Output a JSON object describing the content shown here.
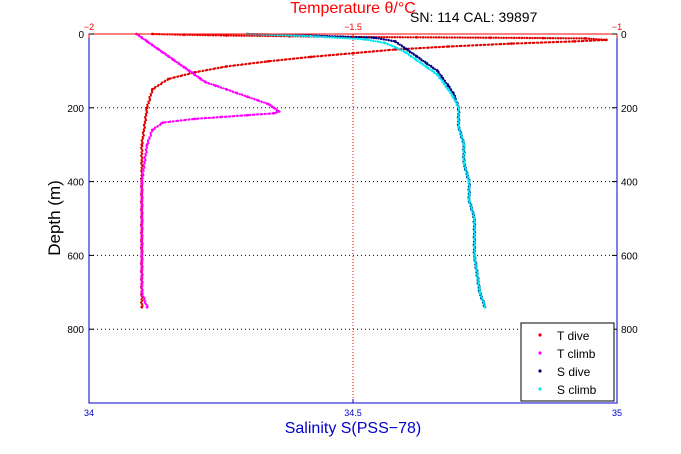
{
  "chart_data": {
    "type": "scatter",
    "title": "Temperature θ/°C",
    "annotation": "SN: 114  CAL: 39897",
    "xlabel_bottom": "Salinity S(PSS−78)",
    "xlabel_top": "Temperature θ/°C",
    "ylabel": "Depth (m)",
    "x_bottom_lim": [
      34,
      35
    ],
    "x_bottom_ticks": [
      "34",
      "34.5",
      "35"
    ],
    "x_top_lim": [
      -2,
      -1
    ],
    "x_top_ticks": [
      "−2",
      "−1.5",
      "−1"
    ],
    "ylim": [
      1000,
      0
    ],
    "y_ticks": [
      "0",
      "200",
      "400",
      "600",
      "800"
    ],
    "y_tick_values": [
      0,
      200,
      400,
      600,
      800
    ],
    "grid": "dotted",
    "legend_position": "bottom-right",
    "colors": {
      "axes_bottom": "#0000cc",
      "axes_top": "#ff0000",
      "t_dive": "#e00000",
      "t_climb": "#ff00ff",
      "s_dive": "#000080",
      "s_climb": "#00e5ee",
      "grid": "#000000"
    },
    "series": [
      {
        "name": "T dive",
        "axis": "top",
        "color": "#e00000",
        "x": [
          -1.88,
          -1.82,
          -1.74,
          -1.62,
          -1.52,
          -1.38,
          -1.24,
          -1.14,
          -1.06,
          -1.02,
          -1.08,
          -1.2,
          -1.32,
          -1.42,
          -1.5,
          -1.58,
          -1.66,
          -1.74,
          -1.8,
          -1.85,
          -1.88,
          -1.89,
          -1.9,
          -1.9,
          -1.9,
          -1.9,
          -1.9
        ],
        "y": [
          0,
          2,
          4,
          6,
          8,
          9,
          10,
          11,
          12,
          16,
          20,
          26,
          34,
          42,
          52,
          62,
          74,
          88,
          104,
          122,
          150,
          200,
          300,
          400,
          500,
          600,
          740
        ]
      },
      {
        "name": "T climb",
        "axis": "top",
        "color": "#ff00ff",
        "x": [
          -1.91,
          -1.9,
          -1.89,
          -1.88,
          -1.87,
          -1.86,
          -1.85,
          -1.84,
          -1.83,
          -1.82,
          -1.81,
          -1.8,
          -1.79,
          -1.78,
          -1.76,
          -1.74,
          -1.72,
          -1.7,
          -1.68,
          -1.66,
          -1.65,
          -1.64,
          -1.65,
          -1.7,
          -1.75,
          -1.8,
          -1.86,
          -1.88,
          -1.89,
          -1.9,
          -1.9,
          -1.9,
          -1.9,
          -1.89
        ],
        "y": [
          0,
          10,
          20,
          30,
          40,
          50,
          60,
          70,
          80,
          90,
          100,
          110,
          120,
          130,
          140,
          150,
          160,
          170,
          180,
          190,
          200,
          210,
          215,
          220,
          225,
          230,
          240,
          260,
          300,
          400,
          500,
          600,
          700,
          740
        ]
      },
      {
        "name": "S dive",
        "axis": "bottom",
        "color": "#000080",
        "x": [
          34.3,
          34.42,
          34.54,
          34.58,
          34.6,
          34.62,
          34.64,
          34.66,
          34.67,
          34.68,
          34.69,
          34.7,
          34.7,
          34.71,
          34.71,
          34.72,
          34.72,
          34.73,
          34.73,
          34.74,
          34.75
        ],
        "y": [
          0,
          4,
          10,
          20,
          40,
          60,
          80,
          100,
          120,
          140,
          160,
          200,
          250,
          300,
          350,
          400,
          450,
          500,
          600,
          700,
          740
        ]
      },
      {
        "name": "S climb",
        "axis": "bottom",
        "color": "#00e5ee",
        "x": [
          34.3,
          34.42,
          34.52,
          34.56,
          34.58,
          34.6,
          34.62,
          34.64,
          34.66,
          34.67,
          34.68,
          34.69,
          34.7,
          34.7,
          34.71,
          34.71,
          34.72,
          34.72,
          34.73,
          34.73,
          34.74,
          34.75
        ],
        "y": [
          0,
          6,
          14,
          24,
          36,
          50,
          70,
          90,
          110,
          130,
          150,
          170,
          200,
          250,
          300,
          350,
          400,
          450,
          500,
          600,
          700,
          740
        ]
      }
    ]
  }
}
